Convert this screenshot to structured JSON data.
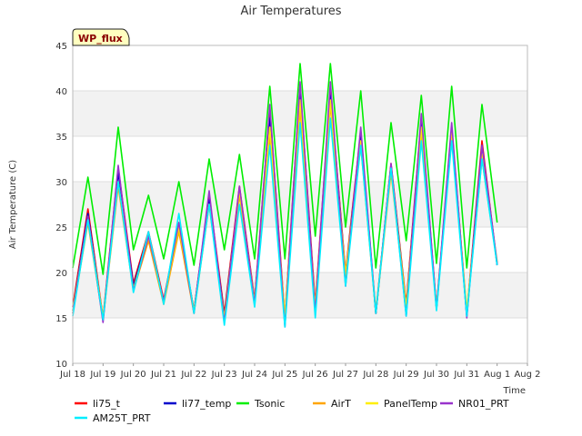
{
  "chart_data": {
    "type": "line",
    "title": "Air Temperatures",
    "xlabel": "Time",
    "ylabel": "Air Temperature (C)",
    "annotation": "WP_flux",
    "ylim": [
      10,
      45
    ],
    "xlim": [
      "2023-07-18",
      "2023-08-02"
    ],
    "yticks": [
      10,
      15,
      20,
      25,
      30,
      35,
      40,
      45
    ],
    "xtick_labels": [
      "Jul 18",
      "Jul 19",
      "Jul 20",
      "Jul 21",
      "Jul 22",
      "Jul 23",
      "Jul 24",
      "Jul 25",
      "Jul 26",
      "Jul 27",
      "Jul 28",
      "Jul 29",
      "Jul 30",
      "Jul 31",
      "Aug 1",
      "Aug 2"
    ],
    "grid": "horizontal bands",
    "legend_position": "bottom",
    "x": [
      "2023-07-18",
      "2023-07-18 12:00",
      "2023-07-19",
      "2023-07-19 12:00",
      "2023-07-20",
      "2023-07-20 12:00",
      "2023-07-21",
      "2023-07-21 12:00",
      "2023-07-22",
      "2023-07-22 12:00",
      "2023-07-23",
      "2023-07-23 12:00",
      "2023-07-24",
      "2023-07-24 12:00",
      "2023-07-25",
      "2023-07-25 12:00",
      "2023-07-26",
      "2023-07-26 12:00",
      "2023-07-27",
      "2023-07-27 12:00",
      "2023-07-28",
      "2023-07-28 12:00",
      "2023-07-29",
      "2023-07-29 12:00",
      "2023-07-30",
      "2023-07-30 12:00",
      "2023-07-31",
      "2023-07-31 12:00",
      "2023-08-01"
    ],
    "series": [
      {
        "name": "li75_t",
        "color": "#ff0000",
        "values": [
          16.2,
          27.0,
          15.0,
          31.5,
          18.8,
          24.5,
          17.0,
          25.5,
          15.8,
          28.5,
          15.5,
          29.5,
          17.0,
          38.0,
          15.0,
          40.5,
          16.5,
          40.0,
          20.0,
          35.5,
          15.5,
          32.0,
          16.5,
          37.0,
          16.0,
          36.0,
          15.5,
          34.5,
          20.8
        ]
      },
      {
        "name": "li77_temp",
        "color": "#0000cc",
        "values": [
          15.8,
          26.5,
          14.8,
          31.0,
          18.5,
          24.2,
          16.8,
          25.2,
          15.8,
          28.0,
          15.2,
          29.0,
          16.8,
          37.0,
          14.5,
          40.0,
          16.0,
          39.5,
          19.8,
          35.0,
          15.5,
          31.8,
          16.2,
          36.5,
          16.0,
          35.5,
          15.2,
          34.0,
          20.8
        ]
      },
      {
        "name": "Tsonic",
        "color": "#00ee00",
        "values": [
          20.5,
          30.5,
          19.8,
          36.0,
          22.5,
          28.5,
          21.5,
          30.0,
          20.8,
          32.5,
          22.5,
          33.0,
          21.5,
          40.5,
          21.5,
          43.0,
          24.0,
          43.0,
          25.0,
          40.0,
          20.5,
          36.5,
          23.5,
          39.5,
          21.0,
          40.5,
          20.5,
          38.5,
          25.5
        ]
      },
      {
        "name": "AirT",
        "color": "#ffa500",
        "values": [
          15.5,
          25.5,
          14.8,
          29.5,
          18.0,
          23.5,
          16.5,
          24.5,
          15.5,
          27.5,
          14.8,
          28.5,
          16.5,
          35.0,
          15.0,
          38.0,
          16.0,
          38.5,
          19.5,
          34.0,
          15.5,
          31.0,
          16.0,
          35.5,
          16.0,
          35.0,
          15.5,
          32.5,
          21.0
        ]
      },
      {
        "name": "PanelTemp",
        "color": "#ffee00",
        "values": [
          15.8,
          26.0,
          15.0,
          30.0,
          18.2,
          24.0,
          16.8,
          25.0,
          15.8,
          27.5,
          15.0,
          29.0,
          16.8,
          36.0,
          15.2,
          39.0,
          16.2,
          39.0,
          19.8,
          34.5,
          15.8,
          31.5,
          16.2,
          36.0,
          16.2,
          35.5,
          15.8,
          33.0,
          21.2
        ]
      },
      {
        "name": "NR01_PRT",
        "color": "#9933cc",
        "values": [
          15.5,
          26.2,
          14.5,
          31.8,
          18.0,
          24.0,
          16.8,
          25.5,
          15.5,
          29.0,
          14.5,
          29.5,
          16.5,
          38.5,
          14.0,
          41.0,
          15.5,
          41.0,
          18.5,
          36.0,
          15.5,
          32.0,
          15.2,
          37.5,
          16.0,
          36.5,
          15.0,
          34.0,
          21.0
        ]
      },
      {
        "name": "AM25T_PRT",
        "color": "#00eeff",
        "values": [
          15.2,
          25.8,
          14.8,
          30.0,
          17.8,
          24.5,
          16.5,
          26.5,
          15.5,
          27.5,
          14.2,
          27.5,
          16.2,
          34.0,
          14.0,
          36.5,
          15.0,
          37.0,
          18.5,
          34.0,
          15.5,
          31.5,
          15.2,
          34.5,
          15.8,
          34.5,
          15.2,
          32.5,
          20.8
        ]
      }
    ]
  }
}
